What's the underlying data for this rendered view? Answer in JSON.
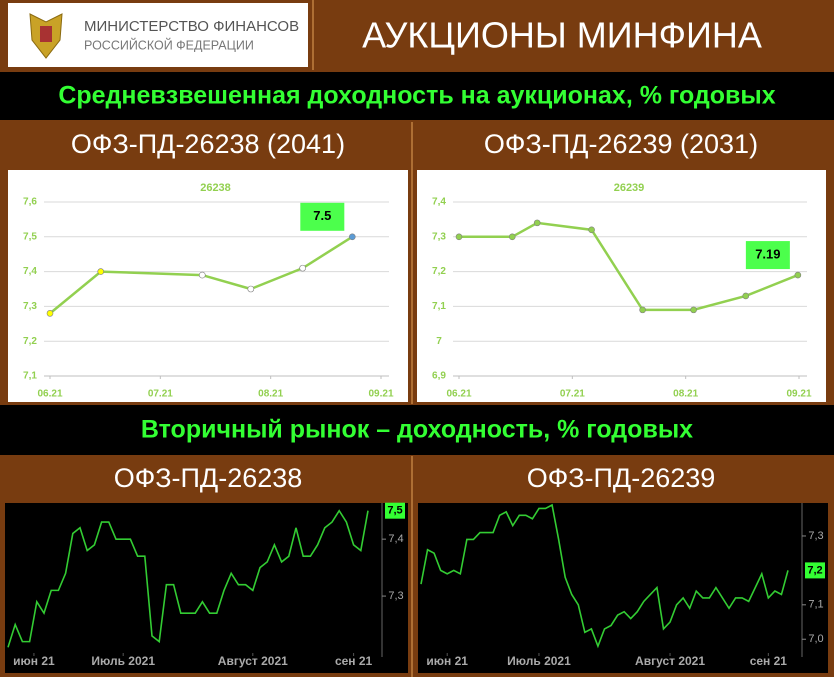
{
  "header": {
    "logo_line1": "МИНИСТЕРСТВО ФИНАНСОВ",
    "logo_line2": "РОССИЙСКОЙ ФЕДЕРАЦИИ",
    "title": "АУКЦИОНЫ МИНФИНА"
  },
  "banners": [
    "Средневзвешенная доходность на аукционах, % годовых",
    "Вторичный рынок – доходность, % годовых"
  ],
  "chart_data": [
    {
      "type": "line",
      "title": "ОФЗ-ПД-26238 (2041)",
      "background": "#ffffff",
      "y_axis_side": "left",
      "grid": true,
      "x": [
        0,
        0.46,
        1.38,
        1.82,
        2.29,
        2.74
      ],
      "xlim": [
        0,
        3
      ],
      "xticks": [
        {
          "value": 0,
          "label": "06.21"
        },
        {
          "value": 1,
          "label": "07.21"
        },
        {
          "value": 2,
          "label": "08.21"
        },
        {
          "value": 3,
          "label": "09.21"
        }
      ],
      "ylim": [
        7.1,
        7.6
      ],
      "yticks": [
        {
          "value": 7.1,
          "label": "7,1"
        },
        {
          "value": 7.2,
          "label": "7,2"
        },
        {
          "value": 7.3,
          "label": "7,3"
        },
        {
          "value": 7.4,
          "label": "7,4"
        },
        {
          "value": 7.5,
          "label": "7,5"
        },
        {
          "value": 7.6,
          "label": "7,6"
        }
      ],
      "series": [
        {
          "name": "26238",
          "color": "#92d050",
          "values": [
            7.28,
            7.4,
            7.39,
            7.35,
            7.41,
            7.5
          ],
          "marker_colors": [
            "#ffff00",
            "#ffff00",
            "#ffffff",
            "#ffffff",
            "#ffffff",
            "#5b9bd5"
          ],
          "value_labels": [
            null,
            null,
            null,
            null,
            null,
            "7.5"
          ]
        }
      ]
    },
    {
      "type": "line",
      "title": "ОФЗ-ПД-26239 (2031)",
      "background": "#ffffff",
      "y_axis_side": "left",
      "grid": true,
      "x": [
        0,
        0.47,
        0.69,
        1.17,
        1.62,
        2.07,
        2.53,
        2.99
      ],
      "xlim": [
        0,
        3
      ],
      "xticks": [
        {
          "value": 0,
          "label": "06.21"
        },
        {
          "value": 1,
          "label": "07.21"
        },
        {
          "value": 2,
          "label": "08.21"
        },
        {
          "value": 3,
          "label": "09.21"
        }
      ],
      "ylim": [
        6.9,
        7.4
      ],
      "yticks": [
        {
          "value": 6.9,
          "label": "6,9"
        },
        7,
        {
          "value": 7.1,
          "label": "7,1"
        },
        {
          "value": 7.2,
          "label": "7,2"
        },
        {
          "value": 7.3,
          "label": "7,3"
        },
        {
          "value": 7.4,
          "label": "7,4"
        }
      ],
      "series": [
        {
          "name": "26239",
          "color": "#92d050",
          "values": [
            7.3,
            7.3,
            7.34,
            7.32,
            7.09,
            7.09,
            7.13,
            7.19
          ],
          "marker_colors": [
            "#92d050",
            "#92d050",
            "#92d050",
            "#92d050",
            "#92d050",
            "#92d050",
            "#92d050",
            "#92d050"
          ],
          "value_labels": [
            null,
            null,
            null,
            null,
            null,
            null,
            null,
            "7.19"
          ]
        }
      ]
    },
    {
      "type": "line",
      "title": "ОФЗ-ПД-26238",
      "background": "#000000",
      "y_axis_side": "right",
      "grid": false,
      "x": [
        0,
        1,
        2,
        3,
        4,
        5,
        6,
        7,
        8,
        9,
        10,
        11,
        12,
        13,
        14,
        15,
        16,
        17,
        18,
        19,
        20,
        21,
        22,
        23,
        24,
        25,
        26,
        27,
        28,
        29,
        30,
        31,
        32,
        33,
        34,
        35,
        36,
        37,
        38,
        39,
        40,
        41,
        42,
        43,
        44,
        45,
        46,
        47,
        48,
        49,
        50
      ],
      "xlim": [
        0,
        50
      ],
      "xticks": [
        {
          "value": 3.6,
          "label": "июн 21"
        },
        {
          "value": 16,
          "label": "Июль 2021"
        },
        {
          "value": 34,
          "label": "Август 2021"
        },
        {
          "value": 48,
          "label": "сен 21"
        }
      ],
      "ylim": [
        7.2,
        7.46
      ],
      "yticks": [
        {
          "value": 7.3,
          "label": "7,3"
        },
        {
          "value": 7.4,
          "label": "7,4"
        }
      ],
      "last_value_label": "7,5",
      "series": [
        {
          "name": "26238",
          "color": "#33cc33",
          "values": [
            7.21,
            7.25,
            7.22,
            7.22,
            7.29,
            7.27,
            7.31,
            7.31,
            7.34,
            7.41,
            7.42,
            7.38,
            7.39,
            7.43,
            7.43,
            7.4,
            7.4,
            7.4,
            7.37,
            7.37,
            7.23,
            7.22,
            7.32,
            7.32,
            7.27,
            7.27,
            7.27,
            7.29,
            7.27,
            7.27,
            7.31,
            7.34,
            7.32,
            7.32,
            7.31,
            7.35,
            7.36,
            7.39,
            7.36,
            7.37,
            7.42,
            7.37,
            7.37,
            7.39,
            7.42,
            7.43,
            7.45,
            7.43,
            7.39,
            7.38,
            7.45
          ]
        }
      ]
    },
    {
      "type": "line",
      "title": "ОФЗ-ПД-26239",
      "background": "#000000",
      "y_axis_side": "right",
      "grid": false,
      "x": [
        0,
        1,
        2,
        3,
        4,
        5,
        6,
        7,
        8,
        9,
        10,
        11,
        12,
        13,
        14,
        15,
        16,
        17,
        18,
        19,
        20,
        21,
        22,
        23,
        24,
        25,
        26,
        27,
        28,
        29,
        30,
        31,
        32,
        33,
        34,
        35,
        36,
        37,
        38,
        39,
        40,
        41,
        42,
        43,
        44,
        45,
        46,
        47,
        48,
        49,
        50,
        51,
        52,
        53,
        54,
        55,
        56
      ],
      "xlim": [
        0,
        56
      ],
      "xticks": [
        {
          "value": 4,
          "label": "июн 21"
        },
        {
          "value": 18,
          "label": "Июль 2021"
        },
        {
          "value": 38,
          "label": "Август 2021"
        },
        {
          "value": 53,
          "label": "сен 21"
        }
      ],
      "ylim": [
        6.96,
        7.39
      ],
      "yticks": [
        {
          "value": 7,
          "label": "7,0"
        },
        {
          "value": 7.1,
          "label": "7,1"
        },
        {
          "value": 7.3,
          "label": "7,3"
        }
      ],
      "last_value_label": "7,2",
      "series": [
        {
          "name": "26239",
          "color": "#33cc33",
          "values": [
            7.16,
            7.26,
            7.25,
            7.2,
            7.19,
            7.2,
            7.19,
            7.29,
            7.29,
            7.31,
            7.31,
            7.31,
            7.36,
            7.37,
            7.33,
            7.36,
            7.36,
            7.35,
            7.38,
            7.38,
            7.39,
            7.29,
            7.18,
            7.13,
            7.1,
            7.02,
            7.03,
            6.98,
            7.03,
            7.04,
            7.07,
            7.08,
            7.06,
            7.08,
            7.11,
            7.13,
            7.15,
            7.03,
            7.05,
            7.1,
            7.12,
            7.09,
            7.14,
            7.12,
            7.12,
            7.15,
            7.12,
            7.09,
            7.12,
            7.12,
            7.11,
            7.15,
            7.19,
            7.12,
            7.14,
            7.13,
            7.2
          ]
        }
      ]
    }
  ]
}
